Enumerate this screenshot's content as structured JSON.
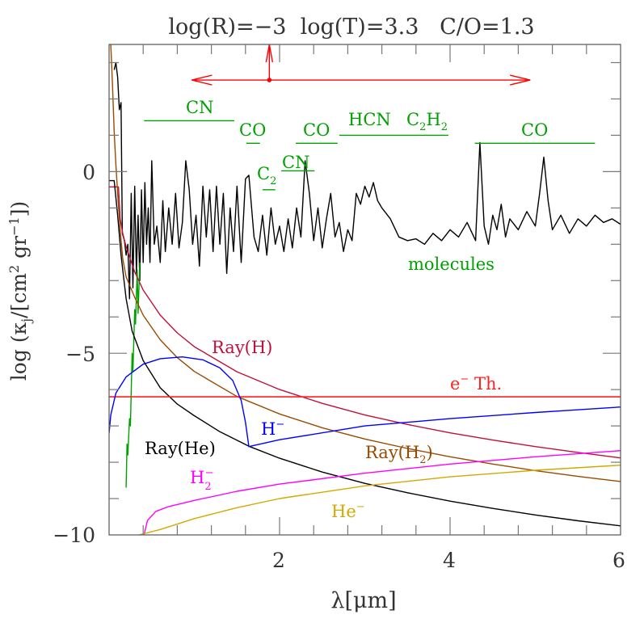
{
  "chart_data": {
    "type": "line",
    "title": "log(R)=−3  log(T)=3.3   C/O=1.3",
    "xlabel": "λ[μm]",
    "ylabel": "log (κ_j/[cm² gr⁻¹])",
    "ylabel_parts": {
      "pre": "log (κ",
      "sub": "j",
      "post": "/[cm",
      "sup1": "2",
      "mid": " gr",
      "sup2": "−1",
      "end": "])"
    },
    "xlim": [
      0,
      6
    ],
    "ylim": [
      -10,
      3.5
    ],
    "x_ticks": [
      "2",
      "4",
      "6"
    ],
    "y_ticks": [
      "0",
      "−5",
      "−10"
    ],
    "grid": false,
    "colors": {
      "molecules": "#000000",
      "molecules_label": "#00a000",
      "ray_h": "#c0103c",
      "ray_h2": "#9a4a00",
      "ray_he": "#000000",
      "e_th": "#ff2020",
      "h_minus": "#0000ff",
      "h2_minus": "#ff00ff",
      "he_minus": "#d4a800",
      "bands": "#00a000",
      "arrow": "#ff0000"
    },
    "series": [
      {
        "key": "molecules",
        "name": "molecules",
        "points": [
          [
            0.06,
            2.8
          ],
          [
            0.08,
            3.0
          ],
          [
            0.1,
            2.6
          ],
          [
            0.12,
            1.7
          ],
          [
            0.14,
            1.9
          ],
          [
            0.155,
            -1.7
          ],
          [
            0.18,
            -1.9
          ],
          [
            0.2,
            -2.3
          ],
          [
            0.22,
            -2.0
          ],
          [
            0.24,
            -3.5
          ],
          [
            0.26,
            -0.6
          ],
          [
            0.28,
            -3.2
          ],
          [
            0.3,
            -0.4
          ],
          [
            0.32,
            -2.8
          ],
          [
            0.34,
            -1.2
          ],
          [
            0.36,
            -3.0
          ],
          [
            0.38,
            -0.5
          ],
          [
            0.4,
            -2.5
          ],
          [
            0.42,
            -0.3
          ],
          [
            0.44,
            -2.0
          ],
          [
            0.46,
            -1.0
          ],
          [
            0.48,
            -2.5
          ],
          [
            0.5,
            0.3
          ],
          [
            0.53,
            -2.0
          ],
          [
            0.56,
            -1.5
          ],
          [
            0.6,
            -2.5
          ],
          [
            0.63,
            -0.8
          ],
          [
            0.66,
            -2.2
          ],
          [
            0.7,
            -1.0
          ],
          [
            0.74,
            -2.0
          ],
          [
            0.78,
            -0.6
          ],
          [
            0.82,
            -2.1
          ],
          [
            0.86,
            -1.4
          ],
          [
            0.9,
            0.3
          ],
          [
            0.94,
            -0.5
          ],
          [
            0.98,
            -2.0
          ],
          [
            1.02,
            -1.2
          ],
          [
            1.06,
            -2.6
          ],
          [
            1.1,
            -0.4
          ],
          [
            1.14,
            -1.8
          ],
          [
            1.18,
            -0.5
          ],
          [
            1.22,
            -2.2
          ],
          [
            1.26,
            -0.4
          ],
          [
            1.3,
            -2.0
          ],
          [
            1.34,
            -0.6
          ],
          [
            1.38,
            -2.8
          ],
          [
            1.42,
            -1.0
          ],
          [
            1.46,
            -2.2
          ],
          [
            1.5,
            -0.4
          ],
          [
            1.55,
            -2.5
          ],
          [
            1.6,
            -0.2
          ],
          [
            1.64,
            -0.1
          ],
          [
            1.7,
            -1.8
          ],
          [
            1.75,
            -2.2
          ],
          [
            1.8,
            -1.2
          ],
          [
            1.85,
            -2.3
          ],
          [
            1.9,
            -1.0
          ],
          [
            1.95,
            -2.0
          ],
          [
            2.0,
            -1.5
          ],
          [
            2.05,
            -2.2
          ],
          [
            2.1,
            -1.3
          ],
          [
            2.15,
            -2.1
          ],
          [
            2.2,
            -1.0
          ],
          [
            2.25,
            -1.8
          ],
          [
            2.3,
            0.3
          ],
          [
            2.35,
            -0.6
          ],
          [
            2.4,
            -1.9
          ],
          [
            2.45,
            -1.0
          ],
          [
            2.5,
            -2.1
          ],
          [
            2.55,
            -1.3
          ],
          [
            2.6,
            -0.6
          ],
          [
            2.65,
            -1.8
          ],
          [
            2.7,
            -1.4
          ],
          [
            2.75,
            -2.2
          ],
          [
            2.8,
            -1.6
          ],
          [
            2.85,
            -1.9
          ],
          [
            2.9,
            -0.6
          ],
          [
            2.95,
            -0.9
          ],
          [
            3.0,
            -0.4
          ],
          [
            3.05,
            -0.7
          ],
          [
            3.1,
            -0.3
          ],
          [
            3.15,
            -0.8
          ],
          [
            3.2,
            -1.0
          ],
          [
            3.3,
            -1.3
          ],
          [
            3.4,
            -1.8
          ],
          [
            3.5,
            -1.9
          ],
          [
            3.6,
            -1.85
          ],
          [
            3.7,
            -2.0
          ],
          [
            3.8,
            -1.7
          ],
          [
            3.9,
            -1.9
          ],
          [
            4.0,
            -1.6
          ],
          [
            4.1,
            -1.8
          ],
          [
            4.2,
            -1.4
          ],
          [
            4.3,
            -1.9
          ],
          [
            4.35,
            0.8
          ],
          [
            4.4,
            -1.5
          ],
          [
            4.45,
            -2.0
          ],
          [
            4.5,
            -1.2
          ],
          [
            4.55,
            -1.6
          ],
          [
            4.6,
            -0.9
          ],
          [
            4.65,
            -1.8
          ],
          [
            4.7,
            -1.3
          ],
          [
            4.8,
            -1.6
          ],
          [
            4.9,
            -1.1
          ],
          [
            5.0,
            -1.5
          ],
          [
            5.05,
            -0.6
          ],
          [
            5.1,
            0.4
          ],
          [
            5.15,
            -0.8
          ],
          [
            5.2,
            -1.6
          ],
          [
            5.3,
            -1.2
          ],
          [
            5.4,
            -1.7
          ],
          [
            5.5,
            -1.3
          ],
          [
            5.6,
            -1.5
          ],
          [
            5.7,
            -1.2
          ],
          [
            5.8,
            -1.4
          ],
          [
            5.9,
            -1.3
          ],
          [
            6.0,
            -1.45
          ]
        ]
      },
      {
        "key": "molecules_green",
        "points": [
          [
            0.2,
            -8.7
          ],
          [
            0.21,
            -7.5
          ],
          [
            0.22,
            -7.8
          ],
          [
            0.24,
            -6.8
          ],
          [
            0.25,
            -7.0
          ],
          [
            0.27,
            -5.0
          ],
          [
            0.28,
            -5.5
          ],
          [
            0.3,
            -3.8
          ],
          [
            0.31,
            -4.2
          ],
          [
            0.33,
            -2.7
          ],
          [
            0.34,
            -3.9
          ],
          [
            0.36,
            -2.5
          ]
        ]
      },
      {
        "key": "ray_h",
        "name": "Ray(H)",
        "points": [
          [
            0,
            -0.42
          ],
          [
            0.11,
            -0.42
          ],
          [
            0.13,
            -1.3
          ],
          [
            0.16,
            -1.7
          ],
          [
            0.2,
            -2.07
          ],
          [
            0.3,
            -2.76
          ],
          [
            0.4,
            -3.26
          ],
          [
            0.6,
            -3.95
          ],
          [
            0.8,
            -4.44
          ],
          [
            1.0,
            -4.82
          ],
          [
            1.5,
            -5.51
          ],
          [
            2.0,
            -6.0
          ],
          [
            2.5,
            -6.38
          ],
          [
            3.0,
            -6.7
          ],
          [
            3.5,
            -6.96
          ],
          [
            4.0,
            -7.19
          ],
          [
            4.5,
            -7.39
          ],
          [
            5.0,
            -7.57
          ],
          [
            5.5,
            -7.73
          ],
          [
            6.0,
            -7.88
          ]
        ]
      },
      {
        "key": "ray_h2",
        "name": "Ray(H₂)",
        "points": [
          [
            0.02,
            3.5
          ],
          [
            0.04,
            2.4
          ],
          [
            0.06,
            1.1
          ],
          [
            0.08,
            0.2
          ],
          [
            0.1,
            -0.6
          ],
          [
            0.13,
            -1.6
          ],
          [
            0.16,
            -2.4
          ],
          [
            0.2,
            -2.9
          ],
          [
            0.3,
            -3.46
          ],
          [
            0.4,
            -3.95
          ],
          [
            0.6,
            -4.63
          ],
          [
            0.8,
            -5.12
          ],
          [
            1.0,
            -5.5
          ],
          [
            1.5,
            -6.19
          ],
          [
            2.0,
            -6.67
          ],
          [
            2.5,
            -7.05
          ],
          [
            3.0,
            -7.36
          ],
          [
            3.5,
            -7.62
          ],
          [
            4.0,
            -7.85
          ],
          [
            4.5,
            -8.05
          ],
          [
            5.0,
            -8.23
          ],
          [
            5.5,
            -8.39
          ],
          [
            6.0,
            -8.53
          ]
        ]
      },
      {
        "key": "ray_he",
        "name": "Ray(He)",
        "points": [
          [
            0,
            -0.25
          ],
          [
            0.06,
            -0.25
          ],
          [
            0.1,
            -1.2
          ],
          [
            0.14,
            -2.3
          ],
          [
            0.2,
            -3.5
          ],
          [
            0.27,
            -4.39
          ],
          [
            0.4,
            -5.2
          ],
          [
            0.6,
            -5.95
          ],
          [
            0.8,
            -6.4
          ],
          [
            1.0,
            -6.72
          ],
          [
            1.3,
            -7.16
          ],
          [
            1.65,
            -7.57
          ],
          [
            2.0,
            -7.89
          ],
          [
            2.5,
            -8.27
          ],
          [
            3.0,
            -8.58
          ],
          [
            3.5,
            -8.84
          ],
          [
            4.0,
            -9.07
          ],
          [
            4.5,
            -9.27
          ],
          [
            5.0,
            -9.45
          ],
          [
            5.5,
            -9.61
          ],
          [
            6.0,
            -9.75
          ]
        ]
      },
      {
        "key": "e_th",
        "name": "e⁻ Th.",
        "points": [
          [
            0,
            -6.2
          ],
          [
            6,
            -6.2
          ]
        ]
      },
      {
        "key": "h_minus",
        "name": "H⁻",
        "points": [
          [
            0,
            -7.2
          ],
          [
            0.02,
            -6.7
          ],
          [
            0.08,
            -6.1
          ],
          [
            0.2,
            -5.65
          ],
          [
            0.4,
            -5.3
          ],
          [
            0.6,
            -5.15
          ],
          [
            0.86,
            -5.1
          ],
          [
            1.1,
            -5.18
          ],
          [
            1.3,
            -5.4
          ],
          [
            1.45,
            -5.75
          ],
          [
            1.55,
            -6.3
          ],
          [
            1.6,
            -6.9
          ],
          [
            1.64,
            -7.57
          ],
          [
            2.0,
            -7.38
          ],
          [
            3.0,
            -7.0
          ],
          [
            4.0,
            -6.8
          ],
          [
            5.0,
            -6.63
          ],
          [
            6.0,
            -6.48
          ]
        ]
      },
      {
        "key": "h2_minus",
        "name": "H₂⁻",
        "points": [
          [
            0.41,
            -10
          ],
          [
            0.45,
            -9.6
          ],
          [
            0.55,
            -9.35
          ],
          [
            0.7,
            -9.22
          ],
          [
            1.0,
            -9.05
          ],
          [
            1.5,
            -8.8
          ],
          [
            2.0,
            -8.6
          ],
          [
            3.0,
            -8.3
          ],
          [
            4.0,
            -8.05
          ],
          [
            5.0,
            -7.85
          ],
          [
            6.0,
            -7.68
          ]
        ]
      },
      {
        "key": "he_minus",
        "name": "He⁻",
        "points": [
          [
            0.35,
            -10
          ],
          [
            0.6,
            -9.85
          ],
          [
            1.0,
            -9.55
          ],
          [
            1.5,
            -9.25
          ],
          [
            2.0,
            -9.0
          ],
          [
            3.0,
            -8.65
          ],
          [
            4.0,
            -8.4
          ],
          [
            5.0,
            -8.22
          ],
          [
            6.0,
            -8.08
          ]
        ]
      }
    ],
    "bands": [
      {
        "label": "CN",
        "x": [
          0.41,
          1.47
        ],
        "y": 1.4
      },
      {
        "label": "CO",
        "x": [
          1.61,
          1.77
        ],
        "y": 0.78
      },
      {
        "label": "CO",
        "x": [
          2.19,
          2.68
        ],
        "y": 0.78
      },
      {
        "label": "HCN  C₂H₂",
        "x": [
          2.7,
          3.98
        ],
        "y": 1.0
      },
      {
        "label": "CO",
        "x": [
          4.29,
          5.7
        ],
        "y": 0.78
      },
      {
        "label": "C₂",
        "x": [
          1.8,
          1.95
        ],
        "y": -0.5
      },
      {
        "label": "CN",
        "x": [
          2.02,
          2.41
        ],
        "y": 0.02
      }
    ],
    "annotation_arrow": {
      "x_range": [
        0.97,
        4.94
      ],
      "y": 2.52,
      "marker_x": 1.88
    },
    "labels": {
      "ray_h": "Ray(H)",
      "e_th": {
        "base": "e",
        "sup": "−",
        "rest": " Th."
      },
      "h_minus": {
        "base": "H",
        "sup": "−"
      },
      "ray_he": "Ray(He)",
      "ray_h2": {
        "base": "Ray(H",
        "sub": "2",
        "rest": ")"
      },
      "h2_minus": {
        "base": "H",
        "sub": "2",
        "sup": "−"
      },
      "he_minus": {
        "base": "He",
        "sup": "−"
      },
      "molecules": "molecules",
      "band_cn": "CN",
      "band_co": "CO",
      "band_hcn": "HCN",
      "band_c2h2": {
        "base": "C",
        "sub": "2",
        "mid": "H",
        "sub2": "2"
      },
      "band_c2": {
        "base": "C",
        "sub": "2"
      }
    }
  }
}
